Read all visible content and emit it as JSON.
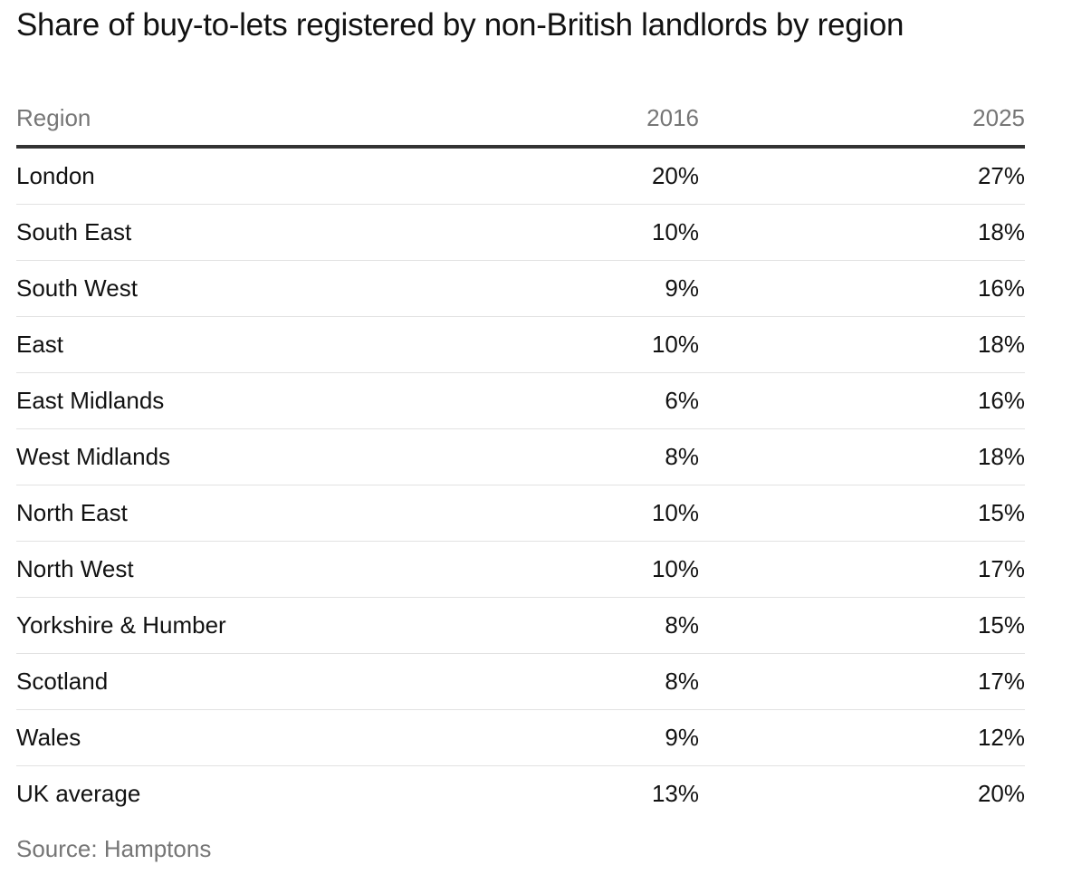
{
  "title": "Share of buy-to-lets registered by non-British landlords by region",
  "source": "Source: Hamptons",
  "chart_data": {
    "type": "table",
    "title": "Share of buy-to-lets registered by non-British landlords by region",
    "columns": [
      "Region",
      "2016",
      "2025"
    ],
    "rows": [
      {
        "region": "London",
        "y2016": "20%",
        "y2025": "27%"
      },
      {
        "region": "South East",
        "y2016": "10%",
        "y2025": "18%"
      },
      {
        "region": "South West",
        "y2016": "9%",
        "y2025": "16%"
      },
      {
        "region": "East",
        "y2016": "10%",
        "y2025": "18%"
      },
      {
        "region": "East Midlands",
        "y2016": "6%",
        "y2025": "16%"
      },
      {
        "region": "West Midlands",
        "y2016": "8%",
        "y2025": "18%"
      },
      {
        "region": "North East",
        "y2016": "10%",
        "y2025": "15%"
      },
      {
        "region": "North West",
        "y2016": "10%",
        "y2025": "17%"
      },
      {
        "region": "Yorkshire & Humber",
        "y2016": "8%",
        "y2025": "15%"
      },
      {
        "region": "Scotland",
        "y2016": "8%",
        "y2025": "17%"
      },
      {
        "region": "Wales",
        "y2016": "9%",
        "y2025": "12%"
      },
      {
        "region": "UK average",
        "y2016": "13%",
        "y2025": "20%"
      }
    ],
    "source": "Source: Hamptons"
  }
}
